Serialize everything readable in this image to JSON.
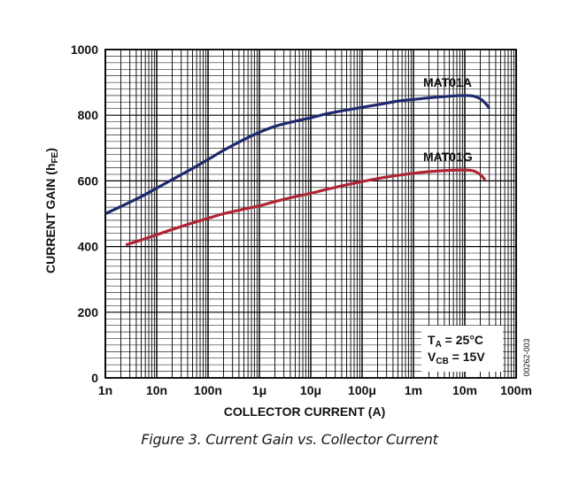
{
  "chart_data": {
    "type": "line",
    "title": "",
    "xlabel": "COLLECTOR CURRENT (A)",
    "ylabel": "CURRENT GAIN (h",
    "ylabel_sub": "FE",
    "ylabel_suffix": ")",
    "x_scale": "log",
    "xlim": [
      1e-09,
      0.1
    ],
    "ylim": [
      0,
      1000
    ],
    "x_ticks": [
      {
        "value": 1e-09,
        "label": "1n"
      },
      {
        "value": 1e-08,
        "label": "10n"
      },
      {
        "value": 1e-07,
        "label": "100n"
      },
      {
        "value": 1e-06,
        "label": "1μ"
      },
      {
        "value": 1e-05,
        "label": "10μ"
      },
      {
        "value": 0.0001,
        "label": "100μ"
      },
      {
        "value": 0.001,
        "label": "1m"
      },
      {
        "value": 0.01,
        "label": "10m"
      },
      {
        "value": 0.1,
        "label": "100m"
      }
    ],
    "y_ticks": [
      {
        "value": 0,
        "label": "0"
      },
      {
        "value": 200,
        "label": "200"
      },
      {
        "value": 400,
        "label": "400"
      },
      {
        "value": 600,
        "label": "600"
      },
      {
        "value": 800,
        "label": "800"
      },
      {
        "value": 1000,
        "label": "1000"
      }
    ],
    "grid": true,
    "series": [
      {
        "name": "MAT01A",
        "color": "#1f2a6e",
        "x": [
          1e-09,
          2e-09,
          5e-09,
          1e-08,
          2e-08,
          5e-08,
          1e-07,
          2e-07,
          5e-07,
          1e-06,
          2e-06,
          5e-06,
          1e-05,
          2e-05,
          5e-05,
          0.0001,
          0.0002,
          0.0005,
          0.001,
          0.002,
          0.005,
          0.01,
          0.015,
          0.02,
          0.025,
          0.03
        ],
        "y": [
          500,
          522,
          552,
          578,
          604,
          638,
          665,
          693,
          726,
          748,
          766,
          782,
          792,
          804,
          816,
          824,
          832,
          843,
          848,
          853,
          858,
          860,
          858,
          850,
          837,
          822
        ]
      },
      {
        "name": "MAT01G",
        "color": "#b02535",
        "x": [
          2.5e-09,
          5e-09,
          1e-08,
          2e-08,
          5e-08,
          1e-07,
          2e-07,
          5e-07,
          1e-06,
          2e-06,
          5e-06,
          1e-05,
          2e-05,
          5e-05,
          0.0001,
          0.0002,
          0.0005,
          0.001,
          0.002,
          0.005,
          0.01,
          0.015,
          0.02,
          0.025
        ],
        "y": [
          405,
          420,
          436,
          452,
          472,
          486,
          500,
          514,
          524,
          537,
          552,
          562,
          574,
          588,
          598,
          607,
          617,
          623,
          628,
          632,
          633,
          630,
          619,
          603
        ]
      }
    ],
    "annotations": {
      "ta_main": "T",
      "ta_sub": "A",
      "ta_value": " = 25°C",
      "vcb_main": "V",
      "vcb_sub": "CB",
      "vcb_value": " = 15V"
    },
    "side_code": "00262-003"
  },
  "caption": "Figure 3. Current Gain vs. Collector Current"
}
